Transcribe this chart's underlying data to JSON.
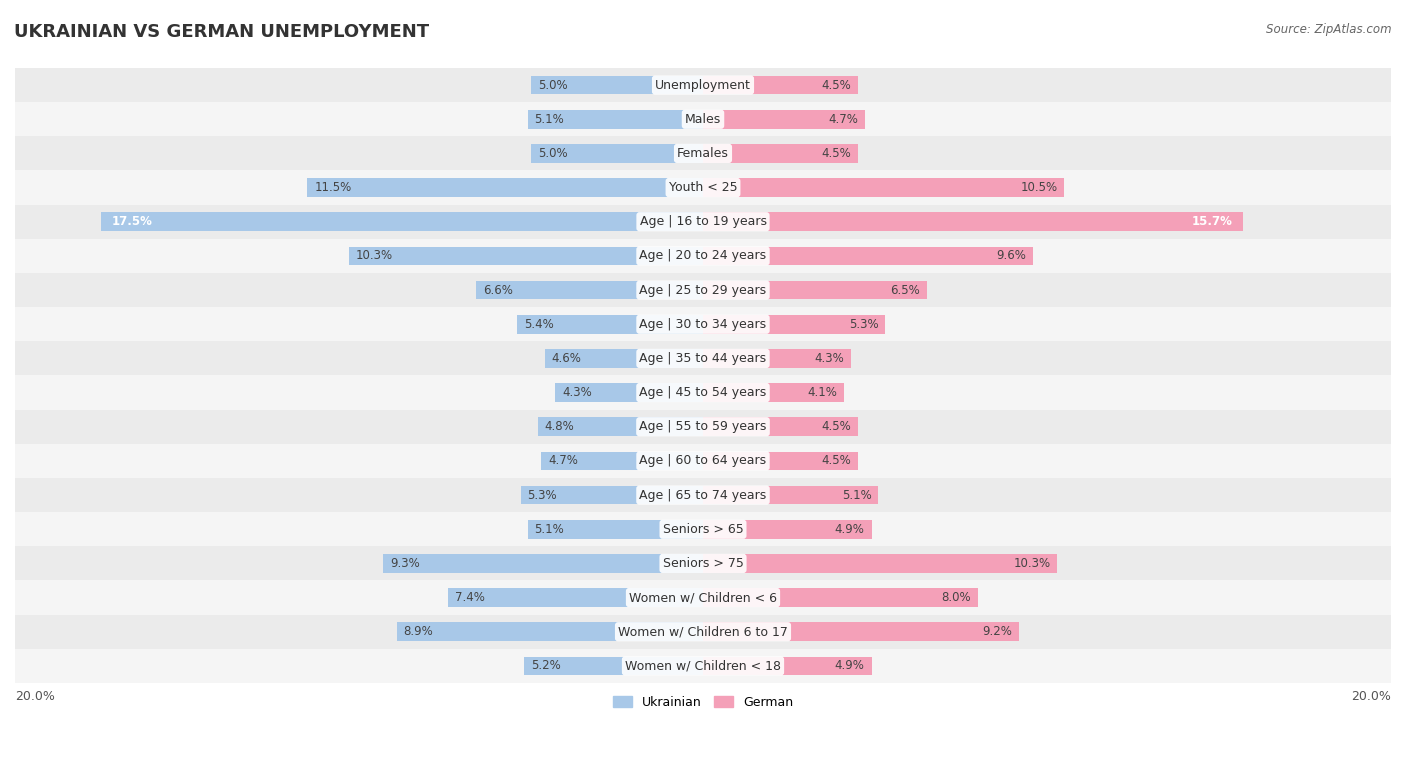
{
  "title": "UKRAINIAN VS GERMAN UNEMPLOYMENT",
  "source": "Source: ZipAtlas.com",
  "categories": [
    "Unemployment",
    "Males",
    "Females",
    "Youth < 25",
    "Age | 16 to 19 years",
    "Age | 20 to 24 years",
    "Age | 25 to 29 years",
    "Age | 30 to 34 years",
    "Age | 35 to 44 years",
    "Age | 45 to 54 years",
    "Age | 55 to 59 years",
    "Age | 60 to 64 years",
    "Age | 65 to 74 years",
    "Seniors > 65",
    "Seniors > 75",
    "Women w/ Children < 6",
    "Women w/ Children 6 to 17",
    "Women w/ Children < 18"
  ],
  "ukrainian": [
    5.0,
    5.1,
    5.0,
    11.5,
    17.5,
    10.3,
    6.6,
    5.4,
    4.6,
    4.3,
    4.8,
    4.7,
    5.3,
    5.1,
    9.3,
    7.4,
    8.9,
    5.2
  ],
  "german": [
    4.5,
    4.7,
    4.5,
    10.5,
    15.7,
    9.6,
    6.5,
    5.3,
    4.3,
    4.1,
    4.5,
    4.5,
    5.1,
    4.9,
    10.3,
    8.0,
    9.2,
    4.9
  ],
  "ukrainian_color": "#a8c8e8",
  "german_color": "#f4a0b8",
  "bar_height": 0.55,
  "max_val": 20.0,
  "row_colors": [
    "#ebebeb",
    "#f5f5f5"
  ],
  "title_fontsize": 13,
  "cat_fontsize": 9,
  "val_fontsize": 8.5,
  "legend_fontsize": 9
}
